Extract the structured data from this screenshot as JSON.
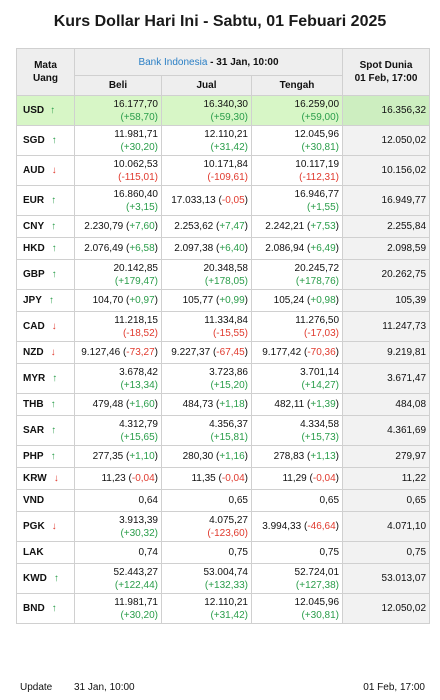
{
  "title": "Kurs Dollar Hari Ini - Sabtu, 01 Febuari 2025",
  "header": {
    "mata_uang": [
      "Mata",
      "Uang"
    ],
    "bi_source": "Bank Indonesia",
    "bi_date": " - 31 Jan, 10:00",
    "beli": "Beli",
    "jual": "Jual",
    "tengah": "Tengah",
    "spot_title": "Spot Dunia",
    "spot_time": "01 Feb, 17:00"
  },
  "arrows": {
    "up": "↑",
    "down": "↓"
  },
  "colors": {
    "up": "#2a9d4a",
    "down": "#e03a2e",
    "highlight": "#d7f6c6",
    "bi_link": "#2a7fc5"
  },
  "rows": [
    {
      "code": "USD",
      "dir": "up",
      "h": 2,
      "beli": "16.177,70",
      "beli_ch": "(+58,70)",
      "jual": "16.340,30",
      "jual_ch": "(+59,30)",
      "tengah": "16.259,00",
      "tengah_ch": "(+59,00)",
      "spot": "16.356,32"
    },
    {
      "code": "SGD",
      "dir": "up",
      "h": 2,
      "beli": "11.981,71",
      "beli_ch": "(+30,20)",
      "jual": "12.110,21",
      "jual_ch": "(+31,42)",
      "tengah": "12.045,96",
      "tengah_ch": "(+30,81)",
      "spot": "12.050,02"
    },
    {
      "code": "AUD",
      "dir": "down",
      "h": 2,
      "beli": "10.062,53",
      "beli_ch": "(-115,01)",
      "jual": "10.171,84",
      "jual_ch": "(-109,61)",
      "tengah": "10.117,19",
      "tengah_ch": "(-112,31)",
      "spot": "10.156,02"
    },
    {
      "code": "EUR",
      "dir": "up",
      "h": 2,
      "beli": "16.860,40",
      "beli_ch": "(+3,15)",
      "jual": "17.033,13",
      "jual_ch": "(-0,05)",
      "jual_inline": true,
      "tengah": "16.946,77",
      "tengah_ch": "(+1,55)",
      "spot": "16.949,77"
    },
    {
      "code": "CNY",
      "dir": "up",
      "h": 1,
      "beli": "2.230,79",
      "beli_ch": "(+7,60)",
      "jual": "2.253,62",
      "jual_ch": "(+7,47)",
      "tengah": "2.242,21",
      "tengah_ch": "(+7,53)",
      "spot": "2.255,84"
    },
    {
      "code": "HKD",
      "dir": "up",
      "h": 1,
      "beli": "2.076,49",
      "beli_ch": "(+6,58)",
      "jual": "2.097,38",
      "jual_ch": "(+6,40)",
      "tengah": "2.086,94",
      "tengah_ch": "(+6,49)",
      "spot": "2.098,59"
    },
    {
      "code": "GBP",
      "dir": "up",
      "h": 2,
      "beli": "20.142,85",
      "beli_ch": "(+179,47)",
      "jual": "20.348,58",
      "jual_ch": "(+178,05)",
      "tengah": "20.245,72",
      "tengah_ch": "(+178,76)",
      "spot": "20.262,75"
    },
    {
      "code": "JPY",
      "dir": "up",
      "h": 1,
      "beli": "104,70",
      "beli_ch": "(+0,97)",
      "jual": "105,77",
      "jual_ch": "(+0,99)",
      "tengah": "105,24",
      "tengah_ch": "(+0,98)",
      "spot": "105,39"
    },
    {
      "code": "CAD",
      "dir": "down",
      "h": 2,
      "beli": "11.218,15",
      "beli_ch": "(-18,52)",
      "jual": "11.334,84",
      "jual_ch": "(-15,55)",
      "tengah": "11.276,50",
      "tengah_ch": "(-17,03)",
      "spot": "11.247,73"
    },
    {
      "code": "NZD",
      "dir": "down",
      "h": 1,
      "beli": "9.127,46",
      "beli_ch": "(-73,27)",
      "jual": "9.227,37",
      "jual_ch": "(-67,45)",
      "tengah": "9.177,42",
      "tengah_ch": "(-70,36)",
      "spot": "9.219,81"
    },
    {
      "code": "MYR",
      "dir": "up",
      "h": 2,
      "beli": "3.678,42",
      "beli_ch": "(+13,34)",
      "jual": "3.723,86",
      "jual_ch": "(+15,20)",
      "tengah": "3.701,14",
      "tengah_ch": "(+14,27)",
      "spot": "3.671,47"
    },
    {
      "code": "THB",
      "dir": "up",
      "h": 1,
      "beli": "479,48",
      "beli_ch": "(+1,60)",
      "jual": "484,73",
      "jual_ch": "(+1,18)",
      "tengah": "482,11",
      "tengah_ch": "(+1,39)",
      "spot": "484,08"
    },
    {
      "code": "SAR",
      "dir": "up",
      "h": 2,
      "beli": "4.312,79",
      "beli_ch": "(+15,65)",
      "jual": "4.356,37",
      "jual_ch": "(+15,81)",
      "tengah": "4.334,58",
      "tengah_ch": "(+15,73)",
      "spot": "4.361,69"
    },
    {
      "code": "PHP",
      "dir": "up",
      "h": 1,
      "beli": "277,35",
      "beli_ch": "(+1,10)",
      "jual": "280,30",
      "jual_ch": "(+1,16)",
      "tengah": "278,83",
      "tengah_ch": "(+1,13)",
      "spot": "279,97"
    },
    {
      "code": "KRW",
      "dir": "down",
      "h": 1,
      "beli": "11,23",
      "beli_ch": "(-0,04)",
      "jual": "11,35",
      "jual_ch": "(-0,04)",
      "tengah": "11,29",
      "tengah_ch": "(-0,04)",
      "spot": "11,22"
    },
    {
      "code": "VND",
      "dir": "none",
      "h": 1,
      "beli": "0,64",
      "beli_ch": "",
      "jual": "0,65",
      "jual_ch": "",
      "tengah": "0,65",
      "tengah_ch": "",
      "spot": "0,65"
    },
    {
      "code": "PGK",
      "dir": "down",
      "h": 2,
      "beli": "3.913,39",
      "beli_ch": "(+30,32)",
      "jual": "4.075,27",
      "jual_ch": "(-123,60)",
      "tengah": "3.994,33",
      "tengah_ch": "(-46,64)",
      "tengah_inline": true,
      "spot": "4.071,10"
    },
    {
      "code": "LAK",
      "dir": "none",
      "h": 1,
      "beli": "0,74",
      "beli_ch": "",
      "jual": "0,75",
      "jual_ch": "",
      "tengah": "0,75",
      "tengah_ch": "",
      "spot": "0,75"
    },
    {
      "code": "KWD",
      "dir": "up",
      "h": 2,
      "beli": "52.443,27",
      "beli_ch": "(+122,44)",
      "jual": "53.004,74",
      "jual_ch": "(+132,33)",
      "tengah": "52.724,01",
      "tengah_ch": "(+127,38)",
      "spot": "53.013,07"
    },
    {
      "code": "BND",
      "dir": "up",
      "h": 2,
      "beli": "11.981,71",
      "beli_ch": "(+30,20)",
      "jual": "12.110,21",
      "jual_ch": "(+31,42)",
      "tengah": "12.045,96",
      "tengah_ch": "(+30,81)",
      "spot": "12.050,02"
    }
  ],
  "footer": {
    "label": "Update",
    "bi_time": "31 Jan, 10:00",
    "spot_time": "01 Feb, 17:00"
  }
}
